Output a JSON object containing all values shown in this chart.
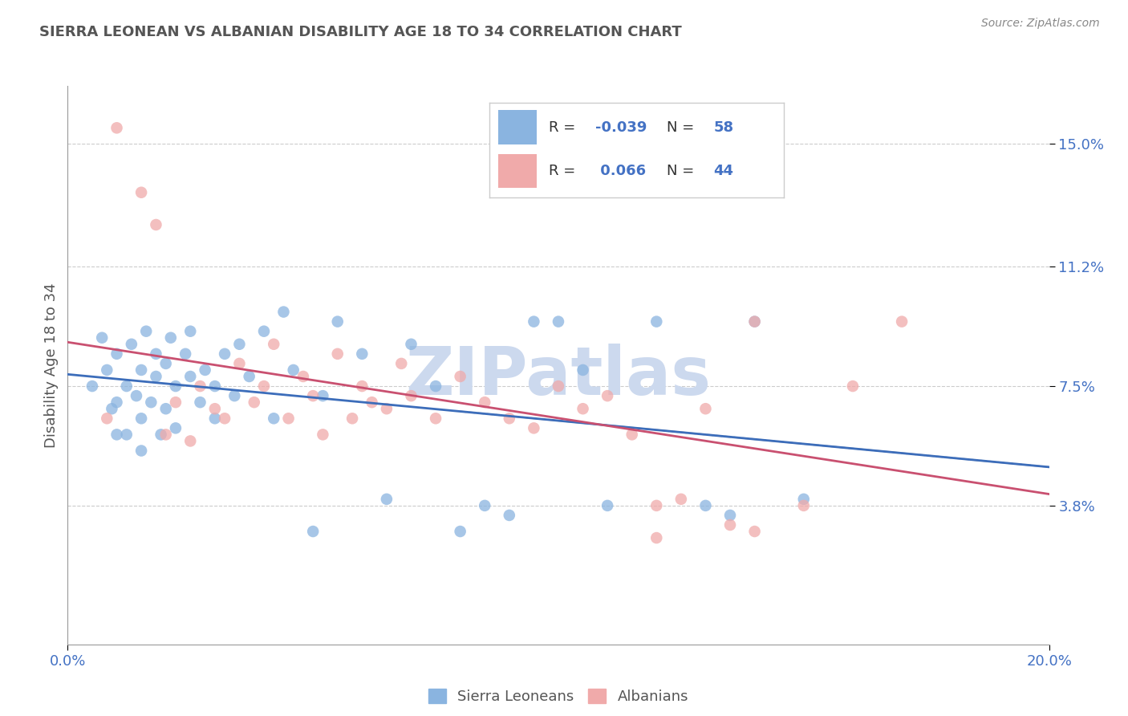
{
  "title": "SIERRA LEONEAN VS ALBANIAN DISABILITY AGE 18 TO 34 CORRELATION CHART",
  "source_text": "Source: ZipAtlas.com",
  "ylabel": "Disability Age 18 to 34",
  "xlim": [
    0.0,
    0.2
  ],
  "ylim": [
    -0.005,
    0.168
  ],
  "ytick_positions": [
    0.038,
    0.075,
    0.112,
    0.15
  ],
  "ytick_labels": [
    "3.8%",
    "7.5%",
    "11.2%",
    "15.0%"
  ],
  "legend_blue_r": "-0.039",
  "legend_blue_n": "58",
  "legend_pink_r": "0.066",
  "legend_pink_n": "44",
  "blue_color": "#8ab4e0",
  "pink_color": "#f0aaaa",
  "blue_line_color": "#3c6dba",
  "pink_line_color": "#c95070",
  "watermark_text": "ZIPatlas",
  "watermark_color": "#ccd9ee",
  "background_color": "#ffffff",
  "grid_color": "#cccccc",
  "title_color": "#555555",
  "axis_label_color": "#555555",
  "tick_label_color": "#4472c4",
  "source_color": "#888888",
  "blue_scatter_x": [
    0.005,
    0.007,
    0.008,
    0.009,
    0.01,
    0.01,
    0.01,
    0.012,
    0.012,
    0.013,
    0.014,
    0.015,
    0.015,
    0.015,
    0.016,
    0.017,
    0.018,
    0.018,
    0.019,
    0.02,
    0.02,
    0.021,
    0.022,
    0.022,
    0.024,
    0.025,
    0.025,
    0.027,
    0.028,
    0.03,
    0.03,
    0.032,
    0.034,
    0.035,
    0.037,
    0.04,
    0.042,
    0.044,
    0.046,
    0.05,
    0.052,
    0.055,
    0.06,
    0.065,
    0.07,
    0.075,
    0.08,
    0.085,
    0.09,
    0.095,
    0.1,
    0.105,
    0.11,
    0.12,
    0.13,
    0.135,
    0.14,
    0.15
  ],
  "blue_scatter_y": [
    0.075,
    0.09,
    0.08,
    0.068,
    0.06,
    0.07,
    0.085,
    0.075,
    0.06,
    0.088,
    0.072,
    0.065,
    0.08,
    0.055,
    0.092,
    0.07,
    0.078,
    0.085,
    0.06,
    0.082,
    0.068,
    0.09,
    0.075,
    0.062,
    0.085,
    0.078,
    0.092,
    0.07,
    0.08,
    0.075,
    0.065,
    0.085,
    0.072,
    0.088,
    0.078,
    0.092,
    0.065,
    0.098,
    0.08,
    0.03,
    0.072,
    0.095,
    0.085,
    0.04,
    0.088,
    0.075,
    0.03,
    0.038,
    0.035,
    0.095,
    0.095,
    0.08,
    0.038,
    0.095,
    0.038,
    0.035,
    0.095,
    0.04
  ],
  "pink_scatter_x": [
    0.008,
    0.01,
    0.015,
    0.018,
    0.02,
    0.022,
    0.025,
    0.027,
    0.03,
    0.032,
    0.035,
    0.038,
    0.04,
    0.042,
    0.045,
    0.048,
    0.05,
    0.052,
    0.055,
    0.058,
    0.06,
    0.062,
    0.065,
    0.068,
    0.07,
    0.075,
    0.08,
    0.085,
    0.09,
    0.095,
    0.1,
    0.105,
    0.11,
    0.115,
    0.12,
    0.125,
    0.13,
    0.135,
    0.14,
    0.15,
    0.16,
    0.17,
    0.12,
    0.14
  ],
  "pink_scatter_y": [
    0.065,
    0.155,
    0.135,
    0.125,
    0.06,
    0.07,
    0.058,
    0.075,
    0.068,
    0.065,
    0.082,
    0.07,
    0.075,
    0.088,
    0.065,
    0.078,
    0.072,
    0.06,
    0.085,
    0.065,
    0.075,
    0.07,
    0.068,
    0.082,
    0.072,
    0.065,
    0.078,
    0.07,
    0.065,
    0.062,
    0.075,
    0.068,
    0.072,
    0.06,
    0.028,
    0.04,
    0.068,
    0.032,
    0.095,
    0.038,
    0.075,
    0.095,
    0.038,
    0.03
  ],
  "dashed_line_y": 0.075,
  "dashed_line_color": "#aaaaaa"
}
